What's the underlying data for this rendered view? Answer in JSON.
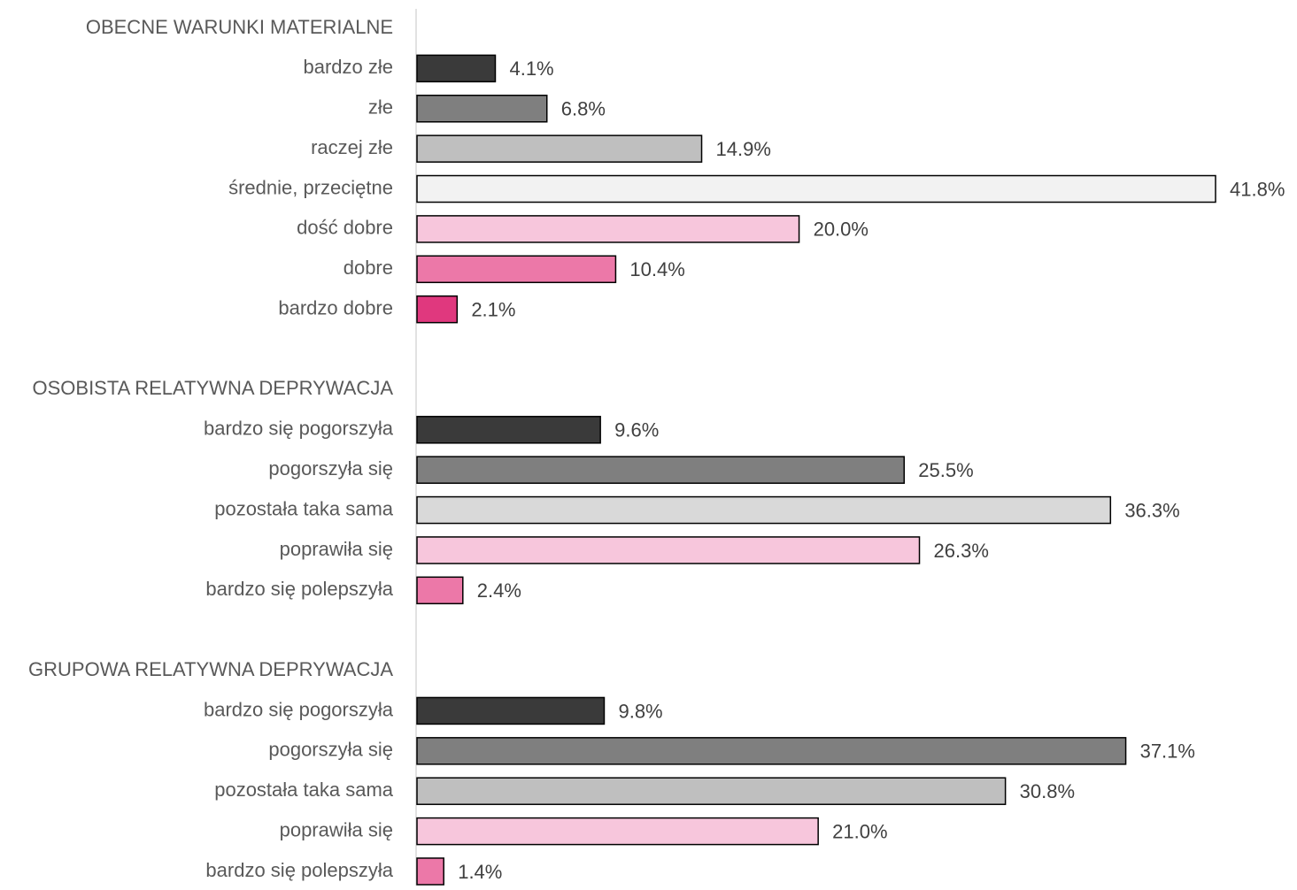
{
  "chart_data": {
    "type": "bar",
    "orientation": "horizontal",
    "groups": [
      {
        "name": "OBECNE WARUNKI MATERIALNE",
        "categories": [
          "bardzo złe",
          "złe",
          "raczej złe",
          "średnie, przeciętne",
          "dość dobre",
          "dobre",
          "bardzo dobre"
        ],
        "values": [
          4.1,
          6.8,
          14.9,
          41.8,
          20.0,
          10.4,
          2.1
        ],
        "value_labels": [
          "4.1%",
          "6.8%",
          "14.9%",
          "41.8%",
          "20.0%",
          "10.4%",
          "2.1%"
        ],
        "colors": [
          "#3a3a3a",
          "#7f7f7f",
          "#bfbfbf",
          "#f2f2f2",
          "#f7c6dc",
          "#ec78a8",
          "#e0387e"
        ]
      },
      {
        "name": "OSOBISTA RELATYWNA DEPRYWACJA",
        "categories": [
          "bardzo się pogorszyła",
          "pogorszyła się",
          "pozostała taka sama",
          "poprawiła się",
          "bardzo się polepszyła"
        ],
        "values": [
          9.6,
          25.5,
          36.3,
          26.3,
          2.4
        ],
        "value_labels": [
          "9.6%",
          "25.5%",
          "36.3%",
          "26.3%",
          "2.4%"
        ],
        "colors": [
          "#3a3a3a",
          "#7f7f7f",
          "#d9d9d9",
          "#f7c6dc",
          "#ec78a8"
        ]
      },
      {
        "name": "GRUPOWA RELATYWNA DEPRYWACJA",
        "categories": [
          "bardzo się pogorszyła",
          "pogorszyła się",
          "pozostała taka sama",
          "poprawiła się",
          "bardzo się polepszyła"
        ],
        "values": [
          9.8,
          37.1,
          30.8,
          21.0,
          1.4
        ],
        "value_labels": [
          "9.8%",
          "37.1%",
          "30.8%",
          "21.0%",
          "1.4%"
        ],
        "colors": [
          "#3a3a3a",
          "#7f7f7f",
          "#bfbfbf",
          "#f7c6dc",
          "#ec78a8"
        ]
      }
    ]
  }
}
